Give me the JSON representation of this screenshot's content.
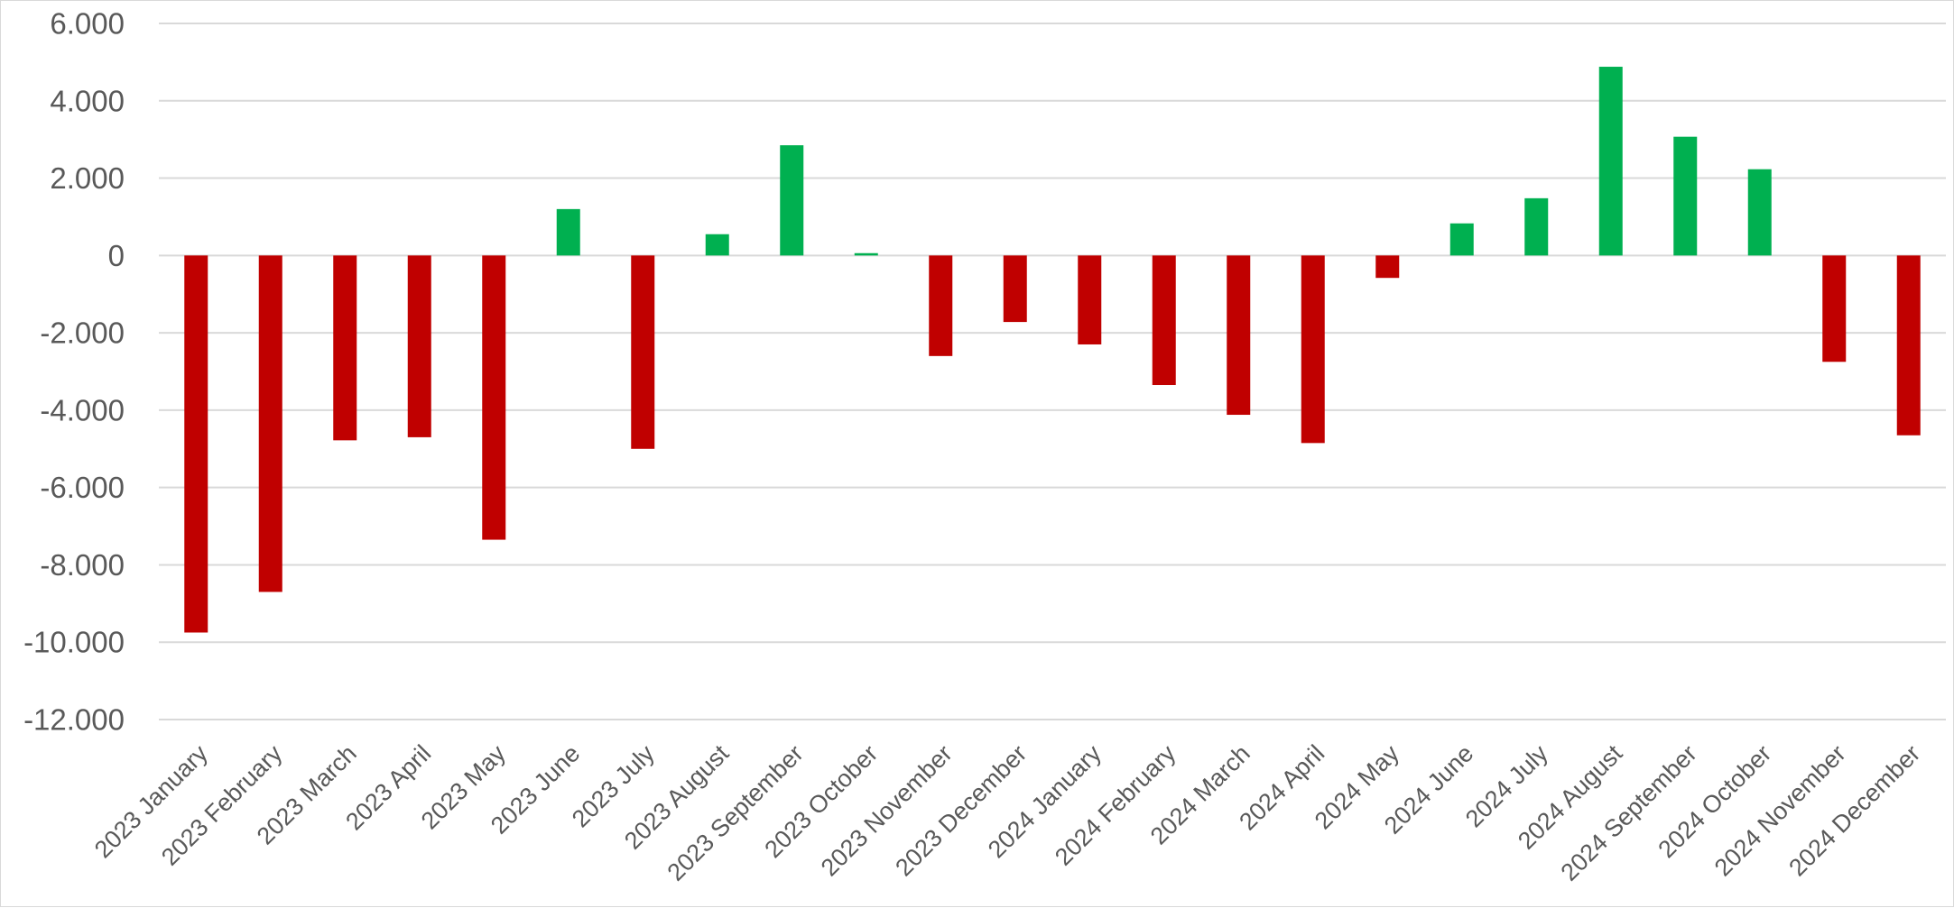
{
  "chart_data": {
    "type": "bar",
    "title": "",
    "xlabel": "",
    "ylabel": "",
    "ylim": [
      -12000,
      6000
    ],
    "grid": true,
    "legend": "none",
    "positive_color": "#00b050",
    "negative_color": "#c00000",
    "grid_color": "#d9d9d9",
    "y_ticks": [
      6000,
      4000,
      2000,
      0,
      -2000,
      -4000,
      -6000,
      -8000,
      -10000,
      -12000
    ],
    "y_tick_labels": [
      "6.000",
      "4.000",
      "2.000",
      "0",
      "-2.000",
      "-4.000",
      "-6.000",
      "-8.000",
      "-10.000",
      "-12.000"
    ],
    "categories": [
      "2023 January",
      "2023 February",
      "2023 March",
      "2023  April",
      "2023 May",
      "2023 June",
      "2023 July",
      "2023 August",
      "2023 September",
      "2023 October",
      "2023 November",
      "2023 December",
      "2024 January",
      "2024 February",
      "2024 March",
      "2024 April",
      "2024 May",
      "2024 June",
      "2024 July",
      "2024 August",
      "2024 September",
      "2024 October",
      "2024 November",
      "2024 December"
    ],
    "values": [
      -9750,
      -8700,
      -4780,
      -4700,
      -7350,
      1200,
      -5000,
      550,
      2850,
      60,
      -2600,
      -1720,
      -2300,
      -3350,
      -4120,
      -4850,
      -580,
      830,
      1480,
      4880,
      3070,
      2230,
      -2750,
      -4650
    ]
  }
}
